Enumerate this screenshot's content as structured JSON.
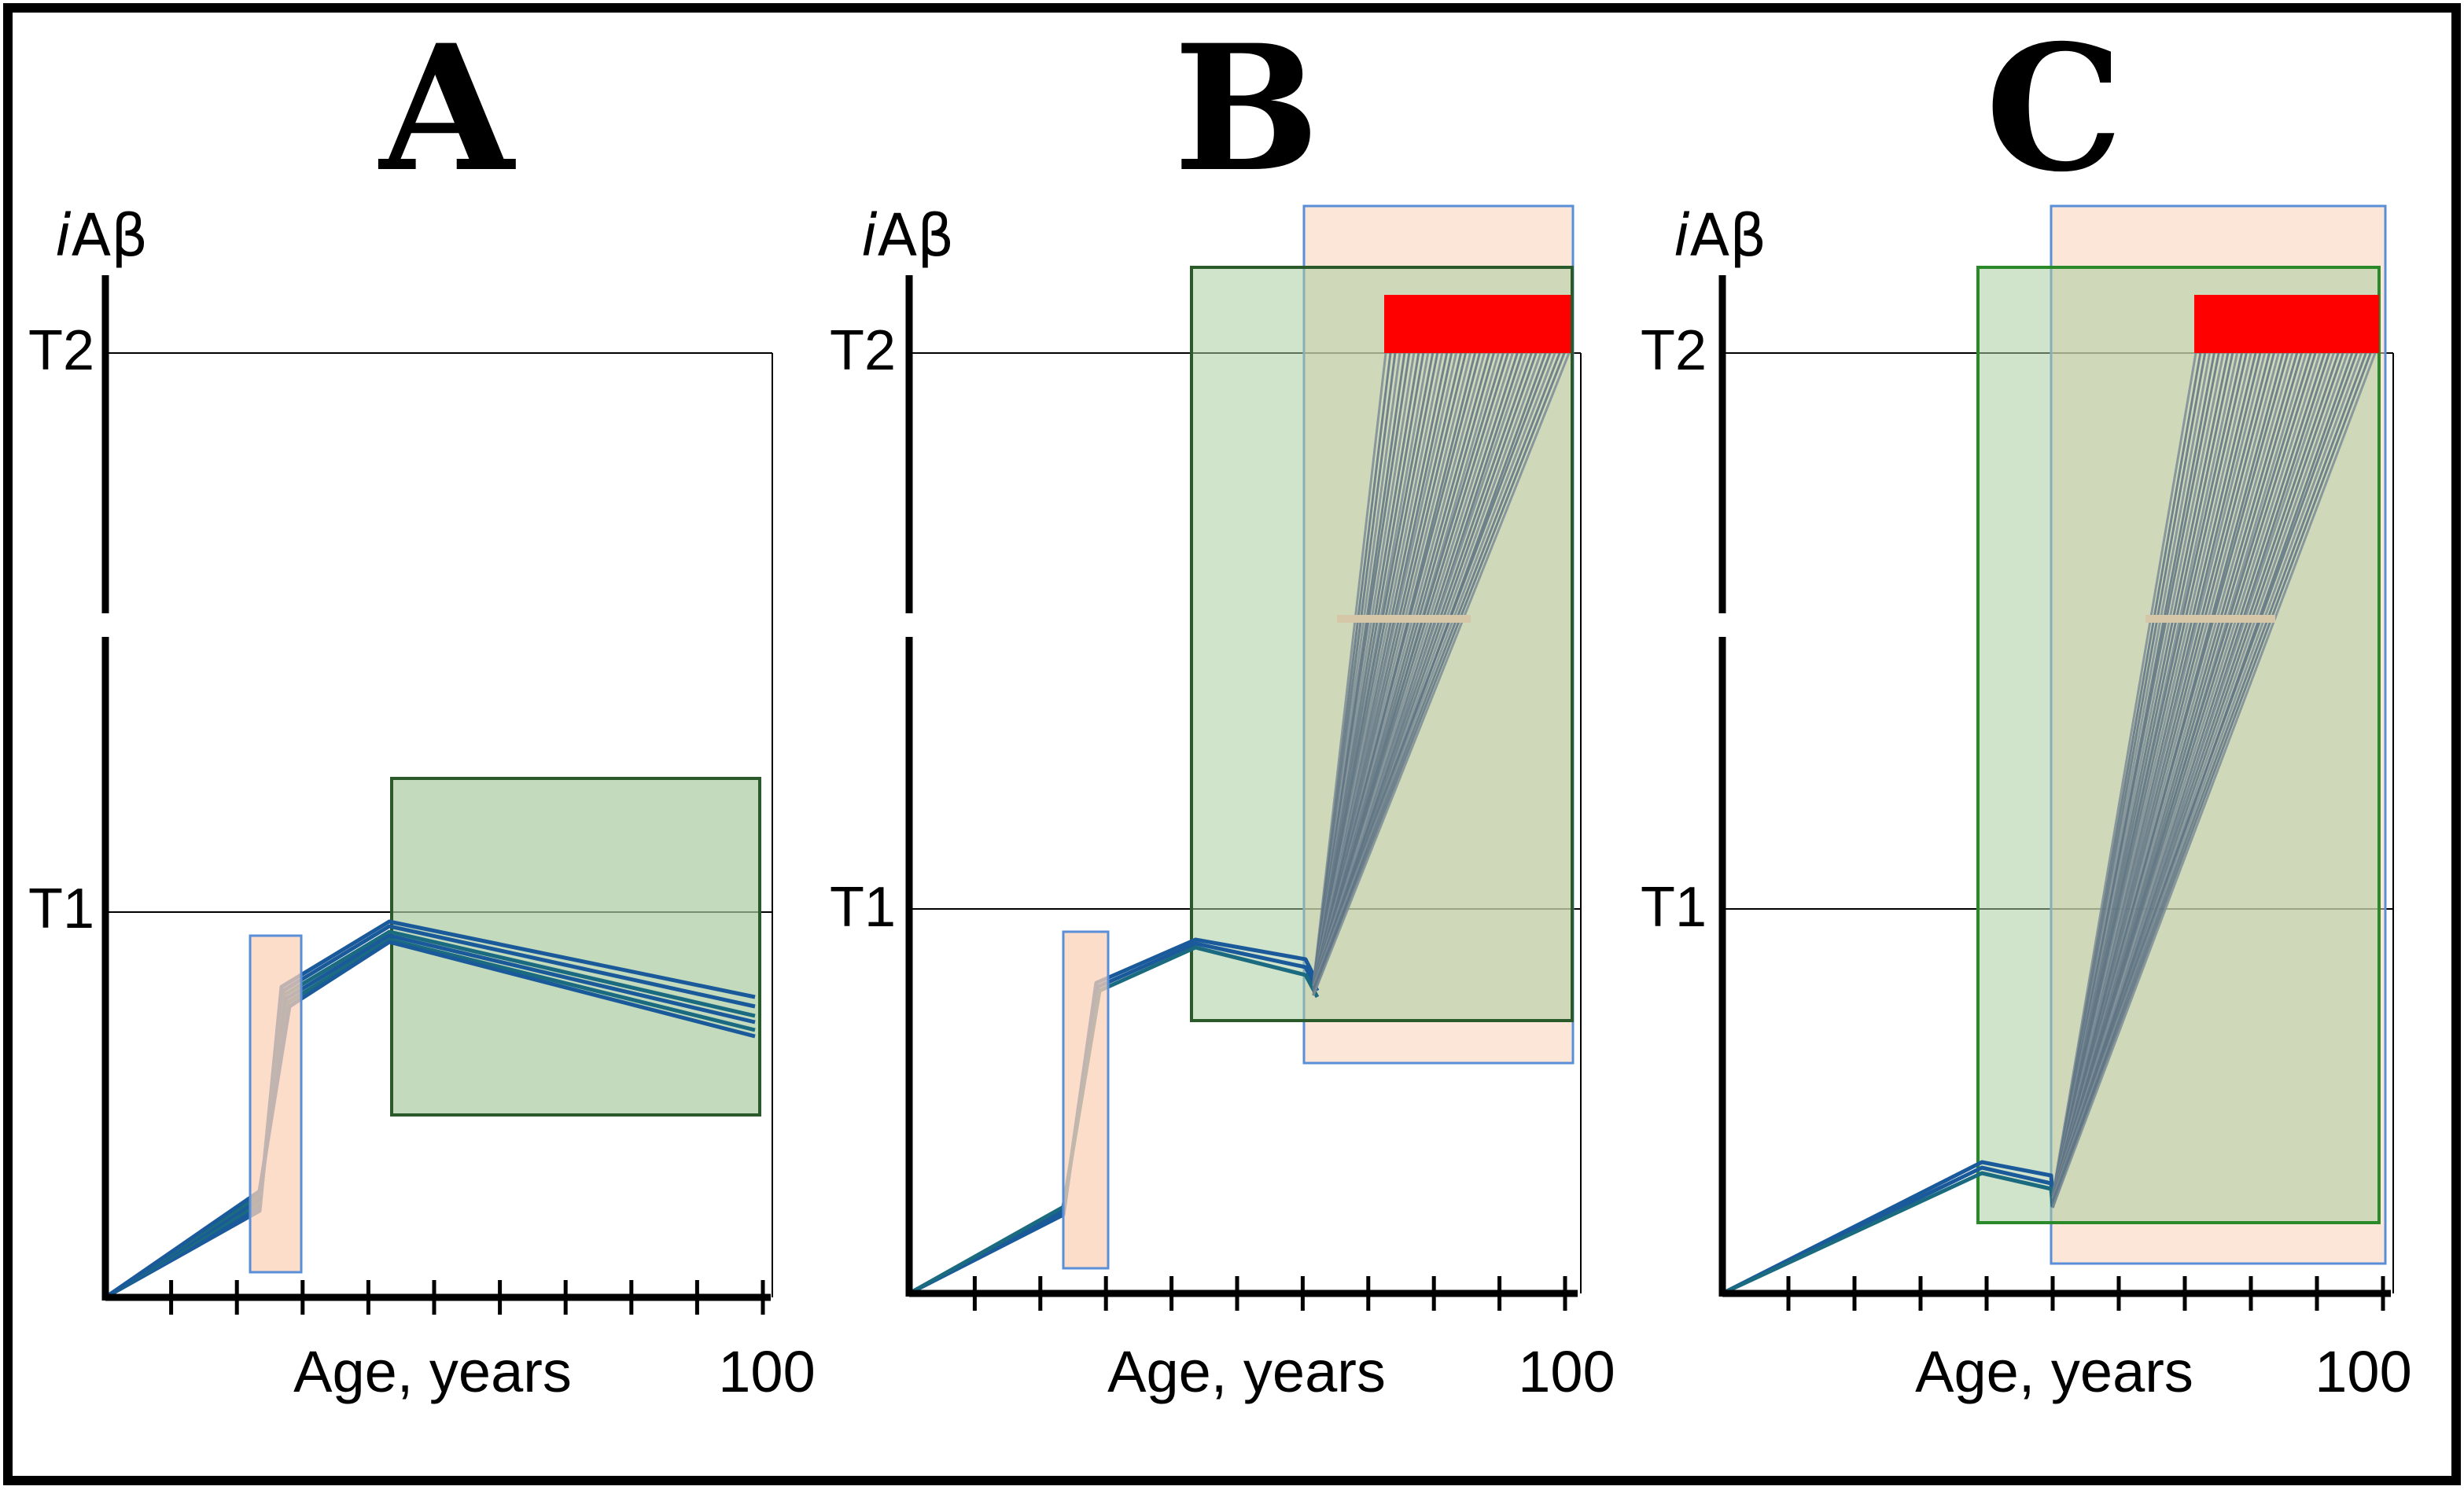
{
  "panels": [
    {
      "id": "A",
      "letter": "A",
      "y_label_italic": "i",
      "y_label_rest": "Aβ",
      "thresholds": [
        "T2",
        "T1"
      ],
      "x_axis_label": "Age, years",
      "x_end_label": "100"
    },
    {
      "id": "B",
      "letter": "B",
      "y_label_italic": "i",
      "y_label_rest": "Aβ",
      "thresholds": [
        "T2",
        "T1"
      ],
      "x_axis_label": "Age, years",
      "x_end_label": "100"
    },
    {
      "id": "C",
      "letter": "C",
      "y_label_italic": "i",
      "y_label_rest": "Aβ",
      "thresholds": [
        "T2",
        "T1"
      ],
      "x_axis_label": "Age, years",
      "x_end_label": "100"
    }
  ],
  "colors": {
    "frame": "#000000",
    "trajectory": "#1a5a9a",
    "trajectory_teal": "#1a6a80",
    "trajectory_gray": "#6a8090",
    "orange_box_fill": "#f9d2b8",
    "orange_box_stroke": "#5a8fd8",
    "green_box_fill": "#a9cca0",
    "green_box_stroke": "#2a5a2a",
    "red_bar": "#ff0000"
  }
}
